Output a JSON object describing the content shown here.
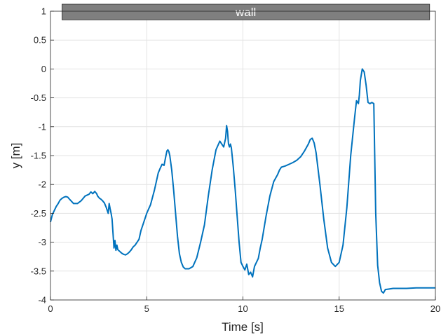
{
  "chart_data": {
    "type": "line",
    "title": "",
    "xlabel": "Time [s]",
    "ylabel": "y [m]",
    "xlim": [
      0,
      20
    ],
    "ylim": [
      -4,
      1
    ],
    "xticks": [
      0,
      5,
      10,
      15,
      20
    ],
    "yticks": [
      1,
      0.5,
      0,
      -0.5,
      -1,
      -1.5,
      -2,
      -2.5,
      -3,
      -3.5,
      -4
    ],
    "xtick_labels": [
      "0",
      "5",
      "10",
      "15",
      "20"
    ],
    "ytick_labels": [
      "1",
      "0.5",
      "0",
      "-0.5",
      "-1",
      "-1.5",
      "-2",
      "-2.5",
      "-3",
      "-3.5",
      "-4"
    ],
    "grid": true,
    "line_color": "#0072bd",
    "wall": {
      "label": "wall",
      "x_start": 0.6,
      "x_end": 19.7,
      "y_bottom": 0.85,
      "y_top": 1.0,
      "fill": "#7f7f7f"
    },
    "series": [
      {
        "x": [
          0,
          0.1,
          0.2,
          0.3,
          0.4,
          0.5,
          0.6,
          0.7,
          0.8,
          0.9,
          1.0,
          1.2,
          1.4,
          1.6,
          1.8,
          2.0,
          2.1,
          2.2,
          2.3,
          2.4,
          2.45,
          2.5,
          2.55,
          2.6,
          2.7,
          2.8,
          2.9,
          3.0,
          3.05,
          3.1,
          3.15,
          3.2,
          3.25,
          3.3,
          3.35,
          3.4,
          3.45,
          3.5,
          3.6,
          3.7,
          3.8,
          3.9,
          4.0,
          4.1,
          4.2,
          4.3,
          4.4,
          4.5,
          4.6,
          4.7,
          4.8,
          4.9,
          5.0,
          5.2,
          5.4,
          5.5,
          5.6,
          5.7,
          5.8,
          5.9,
          6.0,
          6.05,
          6.1,
          6.15,
          6.2,
          6.3,
          6.4,
          6.5,
          6.6,
          6.7,
          6.8,
          6.9,
          7.0,
          7.2,
          7.4,
          7.6,
          7.8,
          8.0,
          8.2,
          8.4,
          8.6,
          8.8,
          9.0,
          9.1,
          9.15,
          9.2,
          9.25,
          9.3,
          9.35,
          9.4,
          9.5,
          9.6,
          9.7,
          9.8,
          9.9,
          10.0,
          10.1,
          10.2,
          10.3,
          10.4,
          10.5,
          10.6,
          10.7,
          10.8,
          10.9,
          11.0,
          11.2,
          11.4,
          11.6,
          11.8,
          11.9,
          12.0,
          12.2,
          12.4,
          12.6,
          12.8,
          13.0,
          13.2,
          13.4,
          13.5,
          13.6,
          13.7,
          13.8,
          14.0,
          14.2,
          14.4,
          14.6,
          14.8,
          15.0,
          15.2,
          15.4,
          15.6,
          15.8,
          15.9,
          16.0,
          16.05,
          16.1,
          16.2,
          16.3,
          16.4,
          16.5,
          16.6,
          16.7,
          16.8,
          16.9,
          17.0,
          17.1,
          17.2,
          17.3,
          17.4,
          17.6,
          17.8,
          18.0,
          18.5,
          19.0,
          19.5,
          20.0
        ],
        "y": [
          -2.65,
          -2.52,
          -2.45,
          -2.38,
          -2.33,
          -2.27,
          -2.24,
          -2.22,
          -2.21,
          -2.22,
          -2.26,
          -2.33,
          -2.33,
          -2.28,
          -2.2,
          -2.17,
          -2.13,
          -2.16,
          -2.12,
          -2.16,
          -2.2,
          -2.22,
          -2.24,
          -2.25,
          -2.28,
          -2.32,
          -2.4,
          -2.5,
          -2.33,
          -2.42,
          -2.5,
          -2.6,
          -2.85,
          -3.1,
          -2.97,
          -3.14,
          -3.05,
          -3.13,
          -3.16,
          -3.19,
          -3.21,
          -3.22,
          -3.2,
          -3.17,
          -3.13,
          -3.08,
          -3.05,
          -3.0,
          -2.95,
          -2.8,
          -2.7,
          -2.6,
          -2.5,
          -2.35,
          -2.1,
          -1.95,
          -1.8,
          -1.72,
          -1.65,
          -1.67,
          -1.5,
          -1.42,
          -1.4,
          -1.43,
          -1.5,
          -1.75,
          -2.1,
          -2.5,
          -2.9,
          -3.2,
          -3.35,
          -3.43,
          -3.46,
          -3.46,
          -3.42,
          -3.27,
          -3.0,
          -2.7,
          -2.2,
          -1.75,
          -1.4,
          -1.25,
          -1.35,
          -1.2,
          -0.98,
          -1.08,
          -1.3,
          -1.35,
          -1.3,
          -1.37,
          -1.7,
          -2.1,
          -2.55,
          -3.0,
          -3.35,
          -3.42,
          -3.48,
          -3.38,
          -3.56,
          -3.52,
          -3.6,
          -3.42,
          -3.35,
          -3.28,
          -3.1,
          -2.95,
          -2.55,
          -2.2,
          -1.95,
          -1.83,
          -1.75,
          -1.7,
          -1.68,
          -1.65,
          -1.62,
          -1.58,
          -1.52,
          -1.42,
          -1.3,
          -1.22,
          -1.2,
          -1.28,
          -1.45,
          -2.0,
          -2.6,
          -3.1,
          -3.35,
          -3.42,
          -3.35,
          -3.05,
          -2.4,
          -1.5,
          -0.85,
          -0.55,
          -0.6,
          -0.45,
          -0.2,
          -0.0,
          -0.05,
          -0.28,
          -0.58,
          -0.6,
          -0.58,
          -0.6,
          -2.5,
          -3.4,
          -3.7,
          -3.85,
          -3.88,
          -3.82,
          -3.81,
          -3.8,
          -3.8,
          -3.8,
          -3.79,
          -3.79,
          -3.79
        ]
      }
    ]
  }
}
